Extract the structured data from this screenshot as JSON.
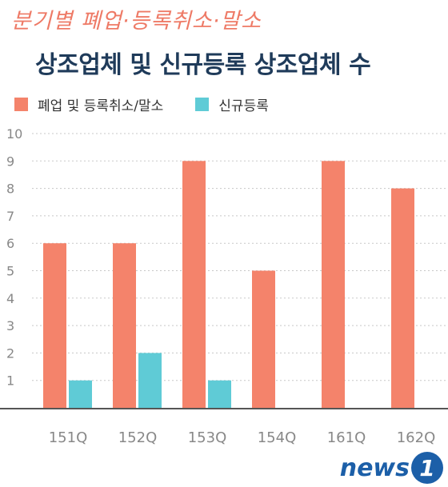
{
  "chart_data": {
    "type": "bar",
    "subtitle": "분기별 폐업·등록취소·말소",
    "title": "상조업체 및 신규등록 상조업체 수",
    "categories": [
      "151Q",
      "152Q",
      "153Q",
      "154Q",
      "161Q",
      "162Q"
    ],
    "series": [
      {
        "name": "폐업 및 등록취소/말소",
        "color": "#f4836b",
        "values": [
          6,
          6,
          9,
          5,
          9,
          8
        ]
      },
      {
        "name": "신규등록",
        "color": "#5fcbd6",
        "values": [
          1,
          2,
          1,
          0,
          0,
          0
        ]
      }
    ],
    "ylim": [
      0,
      10
    ],
    "yticks": [
      "1",
      "2",
      "3",
      "4",
      "5",
      "6",
      "7",
      "8",
      "9",
      "10"
    ],
    "grid": true,
    "legend_position": "top-left"
  },
  "logo": {
    "text": "news",
    "badge": "1",
    "color": "#1c5fa8"
  }
}
